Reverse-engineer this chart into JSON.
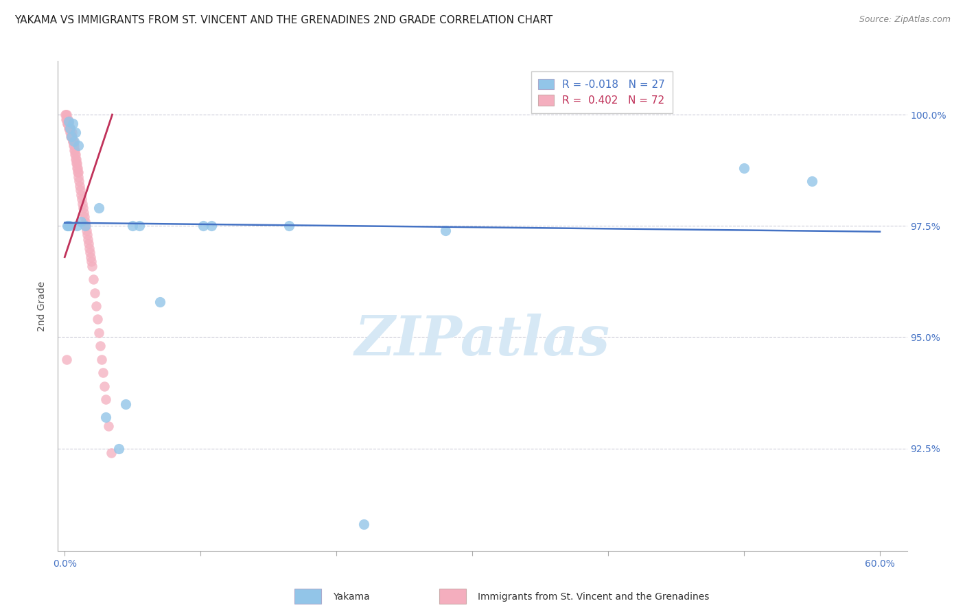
{
  "title": "YAKAMA VS IMMIGRANTS FROM ST. VINCENT AND THE GRENADINES 2ND GRADE CORRELATION CHART",
  "source": "Source: ZipAtlas.com",
  "ylabel": "2nd Grade",
  "x_tick_labels": [
    "0.0%",
    "",
    "",
    "",
    "",
    "",
    "60.0%"
  ],
  "x_tick_values": [
    0.0,
    10.0,
    20.0,
    30.0,
    40.0,
    50.0,
    60.0
  ],
  "y_tick_labels": [
    "92.5%",
    "95.0%",
    "97.5%",
    "100.0%"
  ],
  "y_tick_values": [
    92.5,
    95.0,
    97.5,
    100.0
  ],
  "ylim": [
    90.2,
    101.2
  ],
  "xlim": [
    -0.5,
    62.0
  ],
  "blue_color": "#92C5E8",
  "blue_line_color": "#4472C4",
  "pink_color": "#F4AEBE",
  "pink_line_color": "#C0325A",
  "watermark": "ZIPatlas",
  "watermark_color": "#D6E8F5",
  "legend_blue_R": "R = -0.018",
  "legend_blue_N": "N = 27",
  "legend_pink_R": "R =  0.402",
  "legend_pink_N": "N = 72",
  "legend_label_blue": "Yakama",
  "legend_label_pink": "Immigrants from St. Vincent and the Grenadines",
  "blue_points_x": [
    0.3,
    0.4,
    0.6,
    0.8,
    0.5,
    0.7,
    1.0,
    1.2,
    10.2,
    10.8,
    2.5,
    5.0,
    5.5,
    16.5,
    28.0,
    50.0,
    55.0,
    0.2,
    0.35,
    1.5,
    3.0,
    4.0,
    4.5,
    7.0,
    22.0,
    0.25,
    0.9
  ],
  "blue_points_y": [
    99.85,
    99.7,
    99.8,
    99.6,
    99.5,
    99.4,
    99.3,
    97.6,
    97.5,
    97.5,
    97.9,
    97.5,
    97.5,
    97.5,
    97.4,
    98.8,
    98.5,
    97.5,
    97.5,
    97.5,
    93.2,
    92.5,
    93.5,
    95.8,
    90.8,
    97.5,
    97.5
  ],
  "pink_points_x": [
    0.05,
    0.08,
    0.1,
    0.12,
    0.15,
    0.18,
    0.2,
    0.22,
    0.25,
    0.28,
    0.3,
    0.33,
    0.36,
    0.38,
    0.4,
    0.43,
    0.45,
    0.48,
    0.5,
    0.52,
    0.55,
    0.58,
    0.6,
    0.63,
    0.65,
    0.68,
    0.7,
    0.73,
    0.75,
    0.78,
    0.8,
    0.83,
    0.85,
    0.88,
    0.9,
    0.93,
    0.95,
    0.98,
    1.0,
    1.05,
    1.1,
    1.15,
    1.2,
    1.25,
    1.3,
    1.35,
    1.4,
    1.45,
    1.5,
    1.55,
    1.6,
    1.65,
    1.7,
    1.75,
    1.8,
    1.85,
    1.9,
    1.95,
    2.0,
    2.1,
    2.2,
    2.3,
    2.4,
    2.5,
    2.6,
    2.7,
    2.8,
    2.9,
    3.0,
    3.2,
    3.4,
    0.15
  ],
  "pink_points_y": [
    100.0,
    100.0,
    99.9,
    99.9,
    100.0,
    99.8,
    99.8,
    99.9,
    99.8,
    99.7,
    99.8,
    99.7,
    99.7,
    99.6,
    99.7,
    99.5,
    99.6,
    99.5,
    99.5,
    99.6,
    99.5,
    99.4,
    99.4,
    99.3,
    99.4,
    99.3,
    99.2,
    99.2,
    99.1,
    99.0,
    99.1,
    99.0,
    98.9,
    98.9,
    98.8,
    98.7,
    98.8,
    98.6,
    98.7,
    98.5,
    98.4,
    98.3,
    98.2,
    98.1,
    98.0,
    97.9,
    97.8,
    97.7,
    97.6,
    97.5,
    97.4,
    97.3,
    97.2,
    97.1,
    97.0,
    96.9,
    96.8,
    96.7,
    96.6,
    96.3,
    96.0,
    95.7,
    95.4,
    95.1,
    94.8,
    94.5,
    94.2,
    93.9,
    93.6,
    93.0,
    92.4,
    94.5
  ],
  "blue_trend_x": [
    0.0,
    60.0
  ],
  "blue_trend_y": [
    97.57,
    97.37
  ],
  "pink_trend_x": [
    0.0,
    3.5
  ],
  "pink_trend_y": [
    96.8,
    100.0
  ],
  "title_fontsize": 11,
  "axis_label_fontsize": 10,
  "tick_fontsize": 10,
  "background_color": "#FFFFFF"
}
